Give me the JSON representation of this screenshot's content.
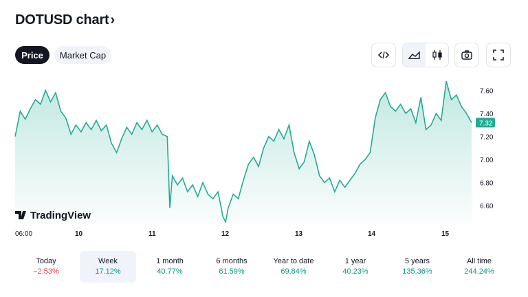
{
  "header": {
    "title": "DOTUSD chart",
    "chevron": "›"
  },
  "tabs": {
    "price": "Price",
    "market_cap": "Market Cap"
  },
  "toolbar": {
    "embed_icon": "code-icon",
    "area_icon": "area-chart-icon",
    "candles_icon": "candlestick-icon",
    "camera_icon": "camera-icon",
    "fullscreen_icon": "fullscreen-icon"
  },
  "chart_data": {
    "type": "area",
    "x": [
      "06:00",
      "10",
      "11",
      "12",
      "13",
      "14",
      "15"
    ],
    "ylim": [
      6.44,
      7.74
    ],
    "y_ticks": [
      "7.60",
      "7.40",
      "7.20",
      "7.00",
      "6.80",
      "6.60"
    ],
    "last_price": "7.32",
    "points": [
      [
        0.0,
        7.2
      ],
      [
        0.01,
        7.42
      ],
      [
        0.02,
        7.35
      ],
      [
        0.03,
        7.44
      ],
      [
        0.04,
        7.52
      ],
      [
        0.05,
        7.48
      ],
      [
        0.06,
        7.6
      ],
      [
        0.07,
        7.5
      ],
      [
        0.08,
        7.58
      ],
      [
        0.09,
        7.42
      ],
      [
        0.1,
        7.36
      ],
      [
        0.11,
        7.22
      ],
      [
        0.12,
        7.3
      ],
      [
        0.13,
        7.24
      ],
      [
        0.14,
        7.32
      ],
      [
        0.15,
        7.26
      ],
      [
        0.16,
        7.34
      ],
      [
        0.17,
        7.25
      ],
      [
        0.18,
        7.3
      ],
      [
        0.19,
        7.14
      ],
      [
        0.2,
        7.06
      ],
      [
        0.21,
        7.18
      ],
      [
        0.22,
        7.28
      ],
      [
        0.23,
        7.22
      ],
      [
        0.24,
        7.32
      ],
      [
        0.25,
        7.26
      ],
      [
        0.26,
        7.34
      ],
      [
        0.27,
        7.24
      ],
      [
        0.28,
        7.3
      ],
      [
        0.29,
        7.22
      ],
      [
        0.3,
        7.2
      ],
      [
        0.305,
        6.58
      ],
      [
        0.31,
        6.86
      ],
      [
        0.32,
        6.78
      ],
      [
        0.33,
        6.84
      ],
      [
        0.34,
        6.72
      ],
      [
        0.35,
        6.78
      ],
      [
        0.36,
        6.68
      ],
      [
        0.37,
        6.8
      ],
      [
        0.38,
        6.7
      ],
      [
        0.39,
        6.66
      ],
      [
        0.4,
        6.72
      ],
      [
        0.41,
        6.5
      ],
      [
        0.415,
        6.46
      ],
      [
        0.42,
        6.58
      ],
      [
        0.43,
        6.7
      ],
      [
        0.44,
        6.66
      ],
      [
        0.45,
        6.82
      ],
      [
        0.46,
        6.96
      ],
      [
        0.47,
        7.02
      ],
      [
        0.48,
        6.94
      ],
      [
        0.49,
        7.1
      ],
      [
        0.5,
        7.2
      ],
      [
        0.51,
        7.16
      ],
      [
        0.52,
        7.26
      ],
      [
        0.53,
        7.18
      ],
      [
        0.54,
        7.3
      ],
      [
        0.55,
        7.06
      ],
      [
        0.56,
        6.92
      ],
      [
        0.57,
        6.98
      ],
      [
        0.58,
        7.16
      ],
      [
        0.59,
        7.04
      ],
      [
        0.6,
        6.86
      ],
      [
        0.61,
        6.8
      ],
      [
        0.62,
        6.84
      ],
      [
        0.63,
        6.72
      ],
      [
        0.64,
        6.82
      ],
      [
        0.65,
        6.76
      ],
      [
        0.66,
        6.82
      ],
      [
        0.67,
        6.88
      ],
      [
        0.68,
        6.96
      ],
      [
        0.69,
        7.0
      ],
      [
        0.7,
        7.06
      ],
      [
        0.71,
        7.36
      ],
      [
        0.72,
        7.52
      ],
      [
        0.73,
        7.58
      ],
      [
        0.74,
        7.46
      ],
      [
        0.75,
        7.42
      ],
      [
        0.76,
        7.48
      ],
      [
        0.77,
        7.4
      ],
      [
        0.78,
        7.44
      ],
      [
        0.79,
        7.32
      ],
      [
        0.8,
        7.54
      ],
      [
        0.81,
        7.26
      ],
      [
        0.82,
        7.3
      ],
      [
        0.83,
        7.4
      ],
      [
        0.84,
        7.34
      ],
      [
        0.85,
        7.68
      ],
      [
        0.86,
        7.52
      ],
      [
        0.87,
        7.56
      ],
      [
        0.88,
        7.46
      ],
      [
        0.89,
        7.4
      ],
      [
        0.9,
        7.32
      ]
    ]
  },
  "watermark": "TradingView",
  "periods": [
    {
      "label": "Today",
      "value": "−2.53%",
      "dir": "down"
    },
    {
      "label": "Week",
      "value": "17.12%",
      "dir": "up",
      "selected": true
    },
    {
      "label": "1 month",
      "value": "40.77%",
      "dir": "up"
    },
    {
      "label": "6 months",
      "value": "61.59%",
      "dir": "up"
    },
    {
      "label": "Year to date",
      "value": "69.84%",
      "dir": "up"
    },
    {
      "label": "1 year",
      "value": "40.23%",
      "dir": "up"
    },
    {
      "label": "5 years",
      "value": "135.36%",
      "dir": "up"
    },
    {
      "label": "All time",
      "value": "244.24%",
      "dir": "up"
    }
  ]
}
